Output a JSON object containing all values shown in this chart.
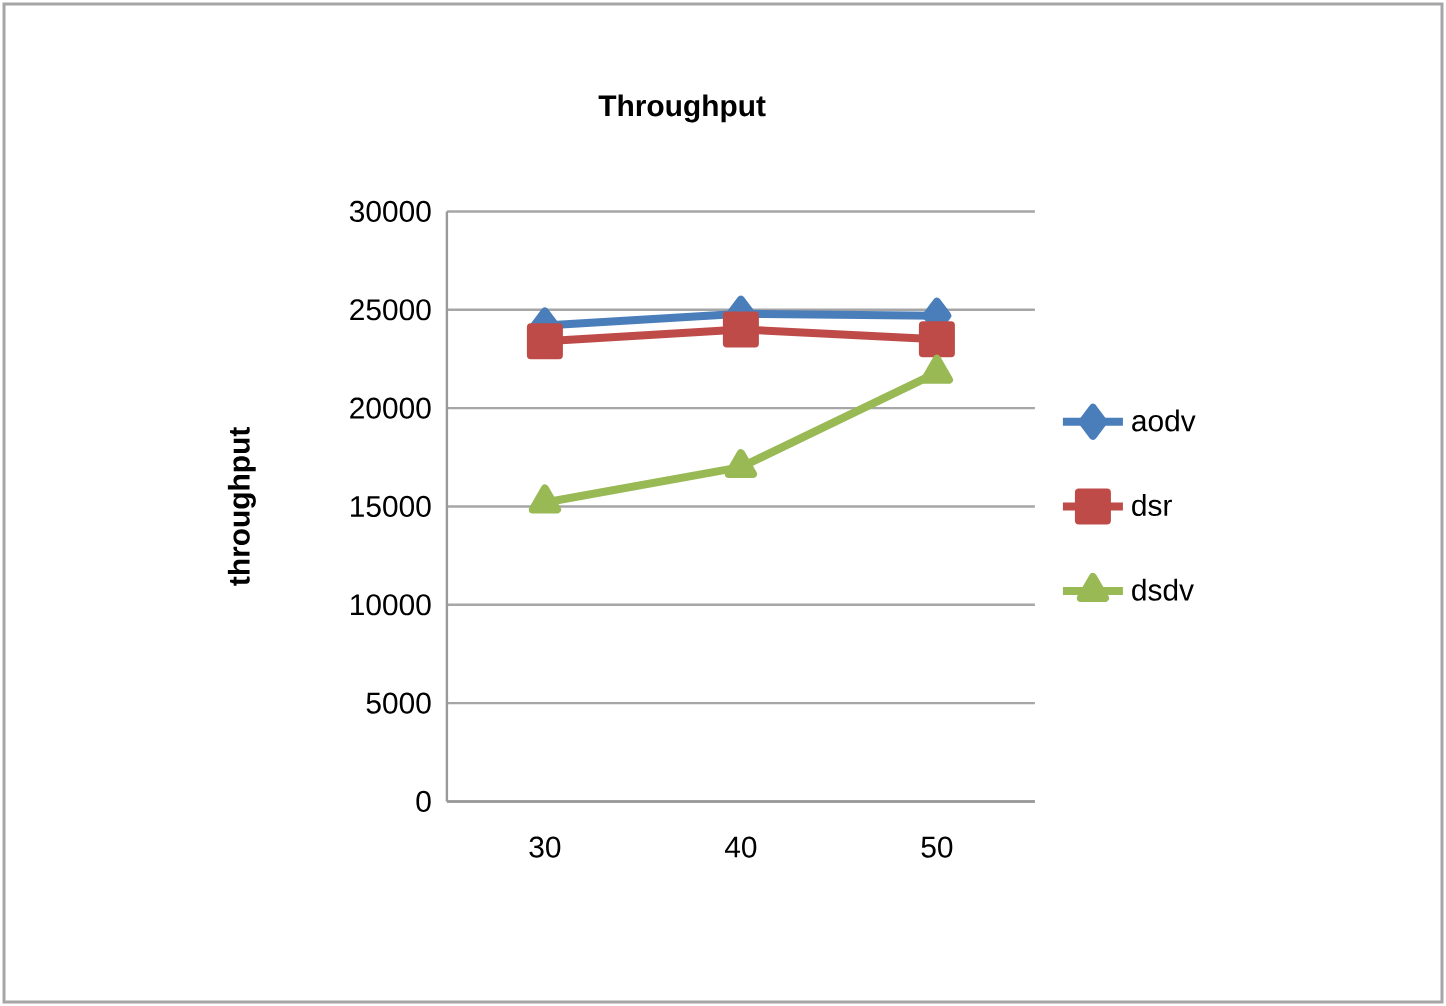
{
  "chart_data": {
    "type": "line",
    "title": "Throughput",
    "ylabel": "throughput",
    "categories": [
      "30",
      "40",
      "50"
    ],
    "series": [
      {
        "name": "aodv",
        "color": "#4a7ebb",
        "marker": "diamond",
        "values": [
          24200,
          24800,
          24700
        ]
      },
      {
        "name": "dsr",
        "color": "#be4b48",
        "marker": "square",
        "values": [
          23400,
          24000,
          23500
        ]
      },
      {
        "name": "dsdv",
        "color": "#98b954",
        "marker": "triangle",
        "values": [
          15200,
          17000,
          21800
        ]
      }
    ],
    "ylim": [
      0,
      30000
    ],
    "yticks": [
      0,
      5000,
      10000,
      15000,
      20000,
      25000,
      30000
    ],
    "grid": "y",
    "legend": "right"
  }
}
